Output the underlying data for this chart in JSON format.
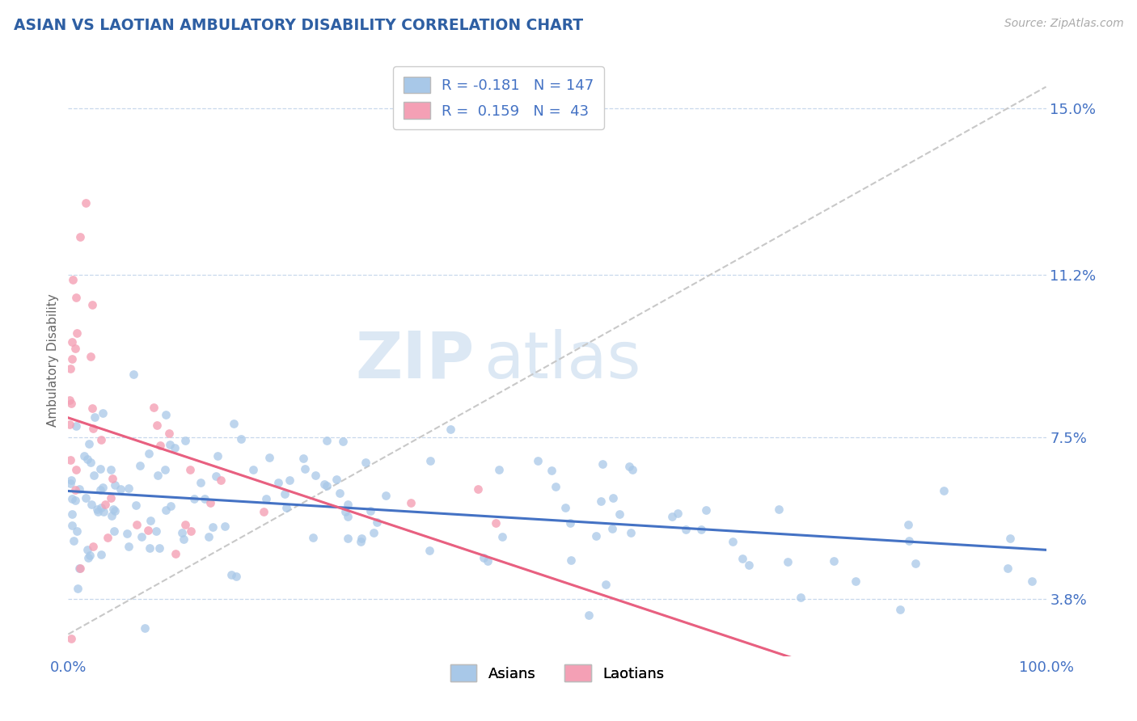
{
  "title": "ASIAN VS LAOTIAN AMBULATORY DISABILITY CORRELATION CHART",
  "source": "Source: ZipAtlas.com",
  "ylabel": "Ambulatory Disability",
  "xlim": [
    0.0,
    100.0
  ],
  "ylim": [
    2.5,
    16.0
  ],
  "yticks": [
    3.8,
    7.5,
    11.2,
    15.0
  ],
  "ytick_labels": [
    "3.8%",
    "7.5%",
    "11.2%",
    "15.0%"
  ],
  "xtick_labels": [
    "0.0%",
    "100.0%"
  ],
  "xticks": [
    0.0,
    100.0
  ],
  "asian_color": "#a8c8e8",
  "laotian_color": "#f4a0b5",
  "asian_line_color": "#4472c4",
  "laotian_line_color": "#e86080",
  "gray_line_color": "#c8c8c8",
  "asian_R": -0.181,
  "asian_N": 147,
  "laotian_R": 0.159,
  "laotian_N": 43,
  "title_color": "#2e5fa3",
  "axis_color": "#4472c4",
  "background_color": "#ffffff",
  "grid_color": "#c8d8ec",
  "watermark_color": "#dce8f4"
}
